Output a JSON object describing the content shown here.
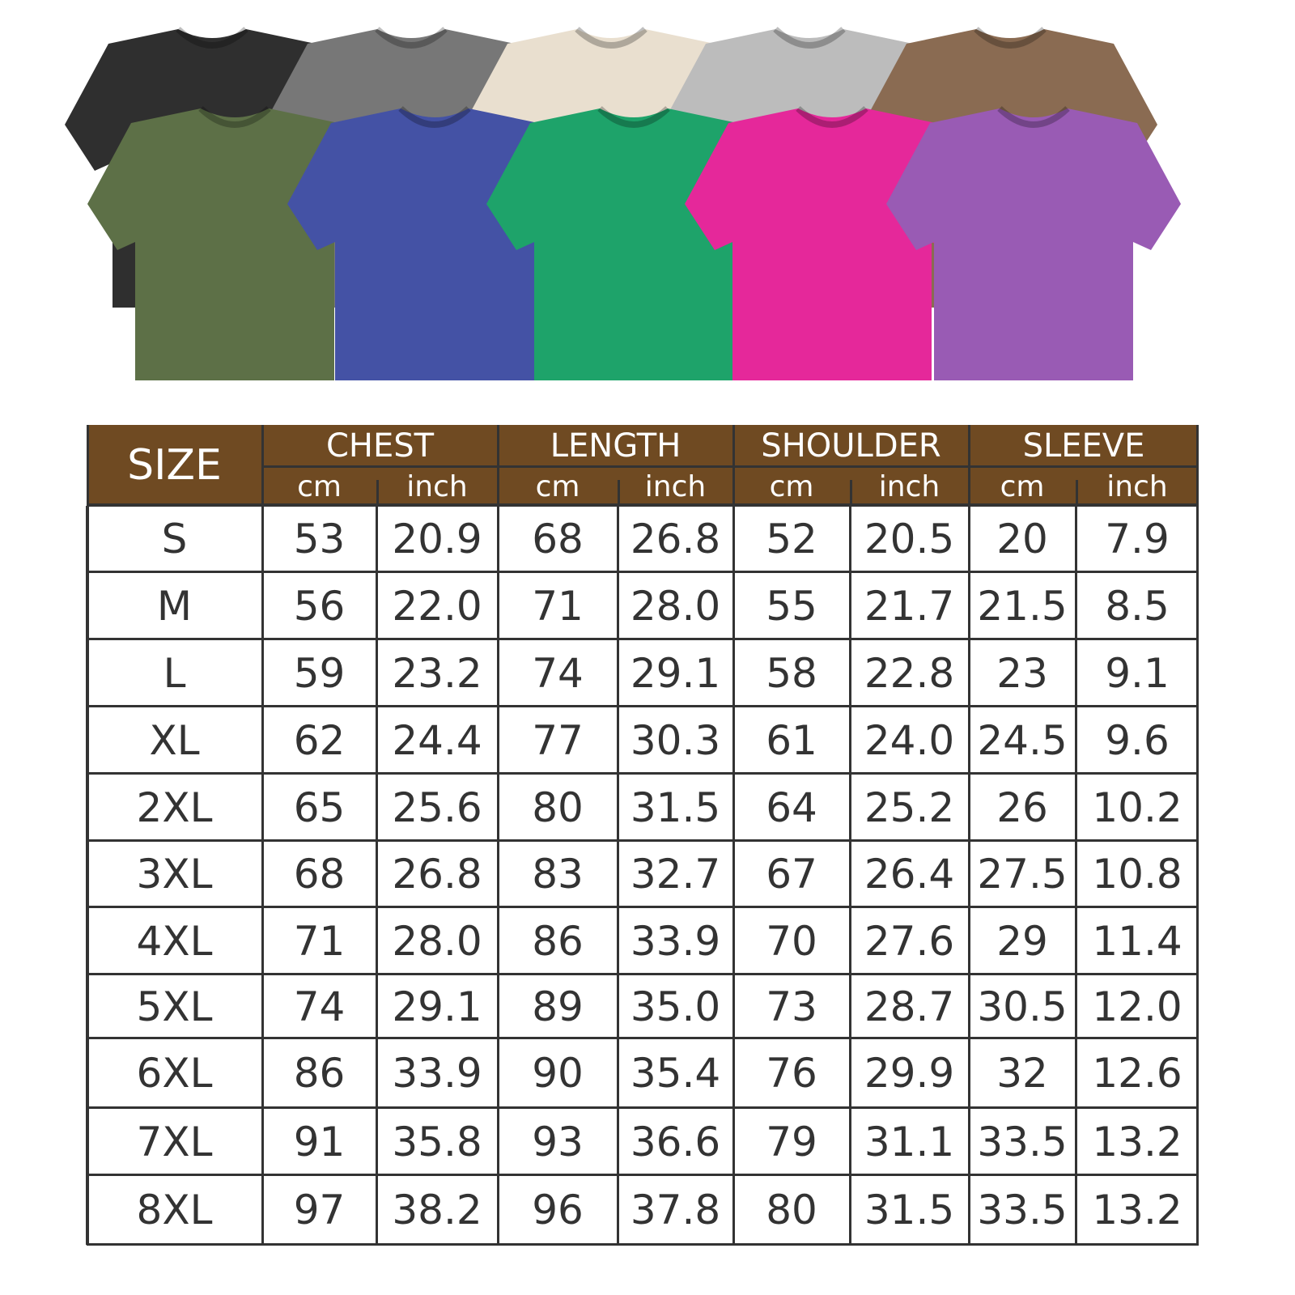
{
  "colors": {
    "header_bg": "#6f4a22",
    "header_text": "#ffffff",
    "grid": "#333333",
    "body_text": "#333333"
  },
  "shirts": {
    "back_row": [
      {
        "name": "black",
        "color": "#2f2f2f"
      },
      {
        "name": "gray",
        "color": "#777777"
      },
      {
        "name": "cream",
        "color": "#e9dfcf"
      },
      {
        "name": "light-gray",
        "color": "#bcbcbc"
      },
      {
        "name": "brown",
        "color": "#8a6b52"
      }
    ],
    "front_row": [
      {
        "name": "olive",
        "color": "#5d7047"
      },
      {
        "name": "blue",
        "color": "#4452a5"
      },
      {
        "name": "green",
        "color": "#1ea36a"
      },
      {
        "name": "pink",
        "color": "#e5289a"
      },
      {
        "name": "purple",
        "color": "#995bb4"
      }
    ]
  },
  "table": {
    "size_header": "SIZE",
    "groups": [
      {
        "label": "CHEST",
        "units": [
          "cm",
          "inch"
        ]
      },
      {
        "label": "LENGTH",
        "units": [
          "cm",
          "inch"
        ]
      },
      {
        "label": "SHOULDER",
        "units": [
          "cm",
          "inch"
        ]
      },
      {
        "label": "SLEEVE",
        "units": [
          "cm",
          "inch"
        ]
      }
    ],
    "rows": [
      [
        "S",
        "53",
        "20.9",
        "68",
        "26.8",
        "52",
        "20.5",
        "20",
        "7.9"
      ],
      [
        "M",
        "56",
        "22.0",
        "71",
        "28.0",
        "55",
        "21.7",
        "21.5",
        "8.5"
      ],
      [
        "L",
        "59",
        "23.2",
        "74",
        "29.1",
        "58",
        "22.8",
        "23",
        "9.1"
      ],
      [
        "XL",
        "62",
        "24.4",
        "77",
        "30.3",
        "61",
        "24.0",
        "24.5",
        "9.6"
      ],
      [
        "2XL",
        "65",
        "25.6",
        "80",
        "31.5",
        "64",
        "25.2",
        "26",
        "10.2"
      ],
      [
        "3XL",
        "68",
        "26.8",
        "83",
        "32.7",
        "67",
        "26.4",
        "27.5",
        "10.8"
      ],
      [
        "4XL",
        "71",
        "28.0",
        "86",
        "33.9",
        "70",
        "27.6",
        "29",
        "11.4"
      ],
      [
        "5XL",
        "74",
        "29.1",
        "89",
        "35.0",
        "73",
        "28.7",
        "30.5",
        "12.0"
      ],
      [
        "6XL",
        "86",
        "33.9",
        "90",
        "35.4",
        "76",
        "29.9",
        "32",
        "12.6"
      ],
      [
        "7XL",
        "91",
        "35.8",
        "93",
        "36.6",
        "79",
        "31.1",
        "33.5",
        "13.2"
      ],
      [
        "8XL",
        "97",
        "38.2",
        "96",
        "37.8",
        "80",
        "31.5",
        "33.5",
        "13.2"
      ]
    ]
  }
}
